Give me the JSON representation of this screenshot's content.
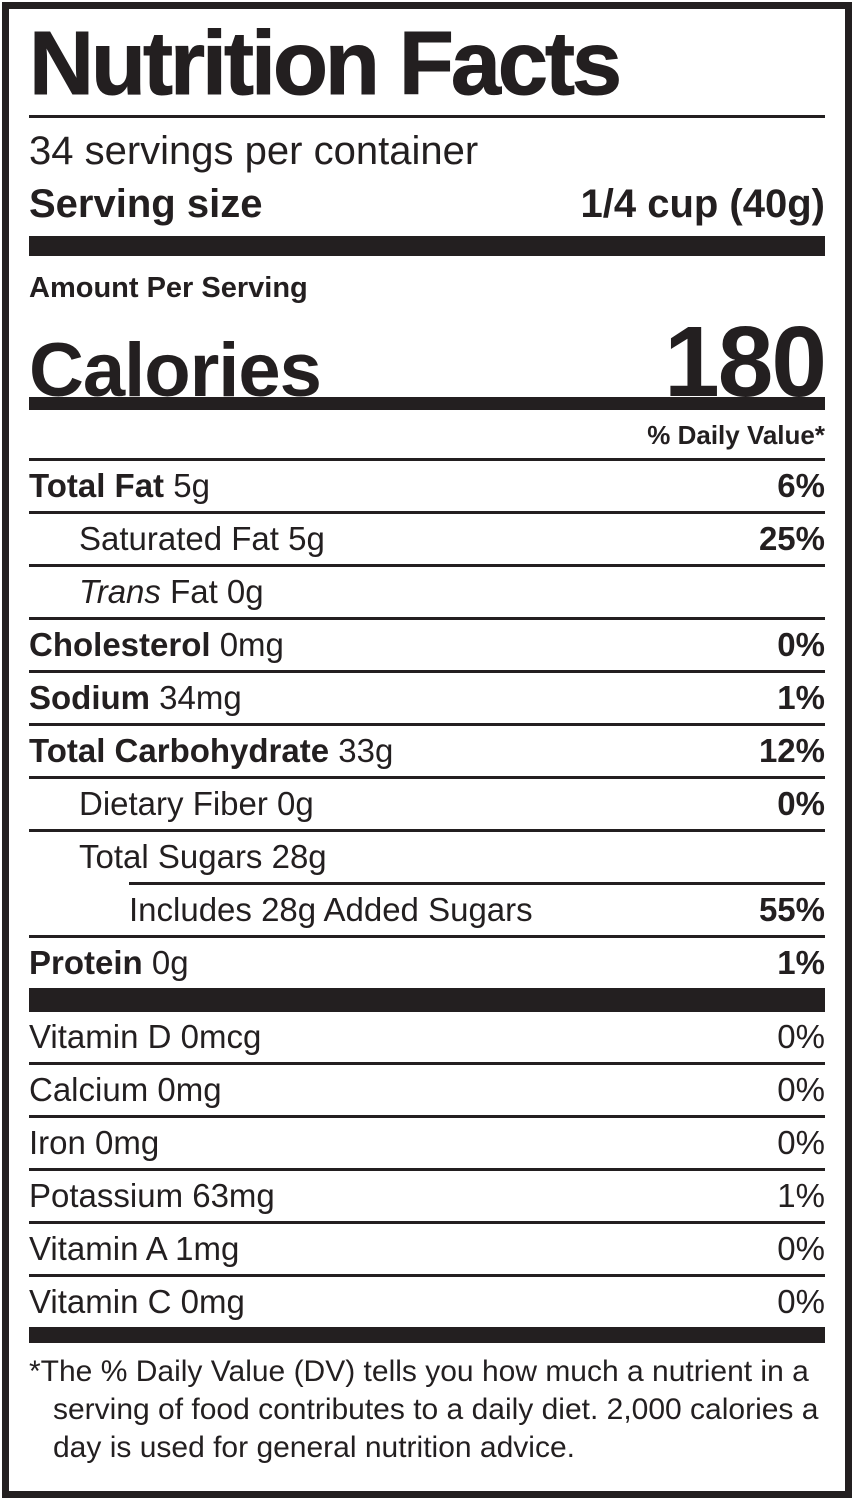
{
  "nutrition_label": {
    "title": "Nutrition Facts",
    "servings_per_container": "34 servings per container",
    "serving_size": {
      "label": "Serving size",
      "value": "1/4 cup (40g)"
    },
    "amount_per_serving": "Amount Per Serving",
    "calories": {
      "label": "Calories",
      "value": "180"
    },
    "daily_value_header": "% Daily Value*",
    "nutrient_rows": [
      {
        "segments": [
          {
            "t": "Total Fat ",
            "b": true
          },
          {
            "t": "5g"
          }
        ],
        "dv": "6%",
        "dv_bold": true,
        "indent": 0,
        "sep": "none"
      },
      {
        "segments": [
          {
            "t": "Saturated Fat 5g"
          }
        ],
        "dv": "25%",
        "dv_bold": true,
        "indent": 1,
        "sep": "full"
      },
      {
        "segments": [
          {
            "t": "Trans",
            "i": true
          },
          {
            "t": " Fat 0g"
          }
        ],
        "dv": "",
        "dv_bold": false,
        "indent": 1,
        "sep": "full"
      },
      {
        "segments": [
          {
            "t": "Cholesterol ",
            "b": true
          },
          {
            "t": "0mg"
          }
        ],
        "dv": "0%",
        "dv_bold": true,
        "indent": 0,
        "sep": "full"
      },
      {
        "segments": [
          {
            "t": "Sodium ",
            "b": true
          },
          {
            "t": "34mg"
          }
        ],
        "dv": "1%",
        "dv_bold": true,
        "indent": 0,
        "sep": "full"
      },
      {
        "segments": [
          {
            "t": "Total Carbohydrate ",
            "b": true
          },
          {
            "t": "33g"
          }
        ],
        "dv": "12%",
        "dv_bold": true,
        "indent": 0,
        "sep": "full"
      },
      {
        "segments": [
          {
            "t": "Dietary Fiber 0g"
          }
        ],
        "dv": "0%",
        "dv_bold": true,
        "indent": 1,
        "sep": "full"
      },
      {
        "segments": [
          {
            "t": "Total Sugars 28g"
          }
        ],
        "dv": "",
        "dv_bold": false,
        "indent": 1,
        "sep": "full"
      },
      {
        "segments": [
          {
            "t": "Includes 28g Added Sugars"
          }
        ],
        "dv": "55%",
        "dv_bold": true,
        "indent": 2,
        "sep": "partial"
      },
      {
        "segments": [
          {
            "t": "Protein ",
            "b": true
          },
          {
            "t": "0g"
          }
        ],
        "dv": "1%",
        "dv_bold": true,
        "indent": 0,
        "sep": "full"
      }
    ],
    "vitamin_rows": [
      {
        "segments": [
          {
            "t": "Vitamin D 0mcg"
          }
        ],
        "dv": "0%",
        "dv_bold": false,
        "indent": 0,
        "sep": "none"
      },
      {
        "segments": [
          {
            "t": "Calcium 0mg"
          }
        ],
        "dv": "0%",
        "dv_bold": false,
        "indent": 0,
        "sep": "full"
      },
      {
        "segments": [
          {
            "t": "Iron 0mg"
          }
        ],
        "dv": "0%",
        "dv_bold": false,
        "indent": 0,
        "sep": "full"
      },
      {
        "segments": [
          {
            "t": "Potassium 63mg"
          }
        ],
        "dv": "1%",
        "dv_bold": false,
        "indent": 0,
        "sep": "full"
      },
      {
        "segments": [
          {
            "t": "Vitamin A 1mg"
          }
        ],
        "dv": "0%",
        "dv_bold": false,
        "indent": 0,
        "sep": "full"
      },
      {
        "segments": [
          {
            "t": "Vitamin C 0mg"
          }
        ],
        "dv": "0%",
        "dv_bold": false,
        "indent": 0,
        "sep": "full"
      }
    ],
    "footnote": "*The % Daily Value (DV) tells you how much a nutrient in a serving of food contributes to a daily diet. 2,000 calories a day is used for general nutrition advice.",
    "colors": {
      "ink": "#231f20",
      "background": "#ffffff"
    }
  }
}
